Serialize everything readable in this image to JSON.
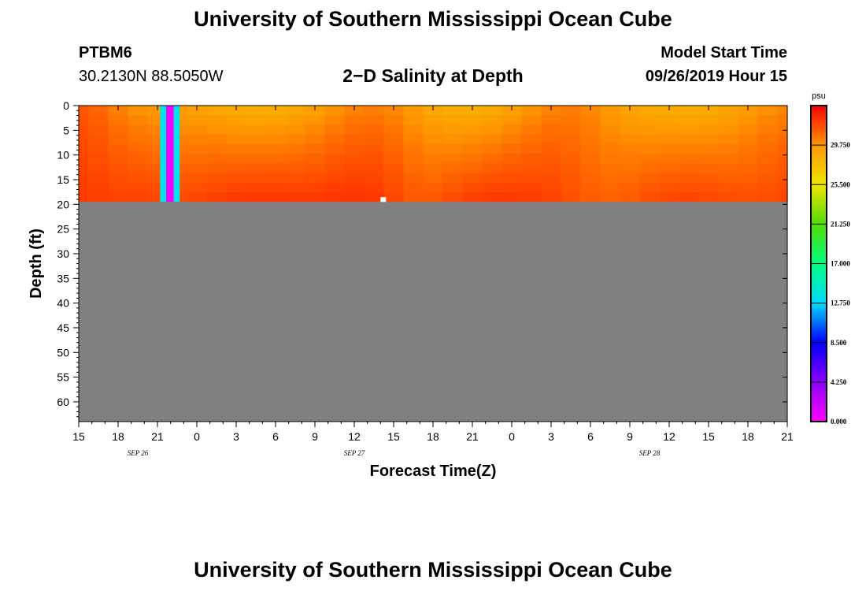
{
  "header": {
    "title": "University of Southern Mississippi Ocean Cube",
    "station_id": "PTBM6",
    "station_coords": "30.2130N 88.5050W",
    "plot_title": "2−D Salinity at Depth",
    "start_label": "Model Start Time",
    "start_value": "09/26/2019 Hour 15"
  },
  "footer": {
    "title": "University of Southern Mississippi Ocean Cube"
  },
  "chart_data": {
    "type": "heatmap",
    "title": "2−D Salinity at Depth",
    "xlabel": "Forecast Time(Z)",
    "ylabel": "Depth (ft)",
    "x_range_hours": [
      0,
      54
    ],
    "y_range_ft": [
      0,
      64
    ],
    "water_depth_ft": 19.5,
    "x_ticks": [
      "15",
      "18",
      "21",
      "0",
      "3",
      "6",
      "9",
      "12",
      "15",
      "18",
      "21",
      "0",
      "3",
      "6",
      "9",
      "12",
      "15",
      "18",
      "21"
    ],
    "date_labels": [
      {
        "hour": 4.5,
        "label": "SEP 26"
      },
      {
        "hour": 21,
        "label": "SEP 27"
      },
      {
        "hour": 43.5,
        "label": "SEP 28"
      }
    ],
    "y_ticks": [
      0,
      5,
      10,
      15,
      20,
      25,
      30,
      35,
      40,
      45,
      50,
      55,
      60
    ],
    "colorbar": {
      "unit": "psu",
      "min": 0,
      "max": 34,
      "tick_labels": [
        "0.000",
        "4.250",
        "8.500",
        "12.750",
        "17.000",
        "21.250",
        "25.500",
        "29.750"
      ],
      "tick_values": [
        0,
        4.25,
        8.5,
        12.75,
        17,
        21.25,
        25.5,
        29.75
      ]
    },
    "surface_salinity_psu": [
      31.5,
      31.0,
      30.2,
      29.6,
      29.3,
      29.1,
      28.9,
      28.6,
      28.2,
      28.0,
      28.1,
      28.4,
      28.9,
      29.5,
      30.0,
      30.2,
      29.9,
      29.3,
      28.6,
      28.1,
      28.0,
      28.3,
      28.9,
      29.5,
      30.1,
      30.3,
      30.0,
      29.4,
      28.8,
      28.4,
      28.2,
      28.1,
      28.3,
      28.7,
      29.2,
      29.7,
      30.0
    ],
    "bottom_salinity_psu": [
      32.3,
      32.3,
      32.2,
      32.2,
      32.1,
      32.0,
      32.1,
      32.3,
      32.5,
      32.6,
      32.6,
      32.5,
      32.5,
      32.6,
      32.6,
      32.5,
      32.1,
      31.6,
      31.6,
      32.0,
      32.3,
      32.5,
      32.5,
      32.4,
      32.2,
      31.8,
      31.4,
      31.3,
      31.5,
      31.9,
      32.1,
      32.2,
      32.1,
      31.9,
      31.8,
      31.9,
      32.1
    ],
    "anomaly_column": {
      "start_hour": 6.2,
      "end_hour": 7.7,
      "outer_value_psu": 13.5,
      "inner_value_psu": 0.5
    }
  }
}
